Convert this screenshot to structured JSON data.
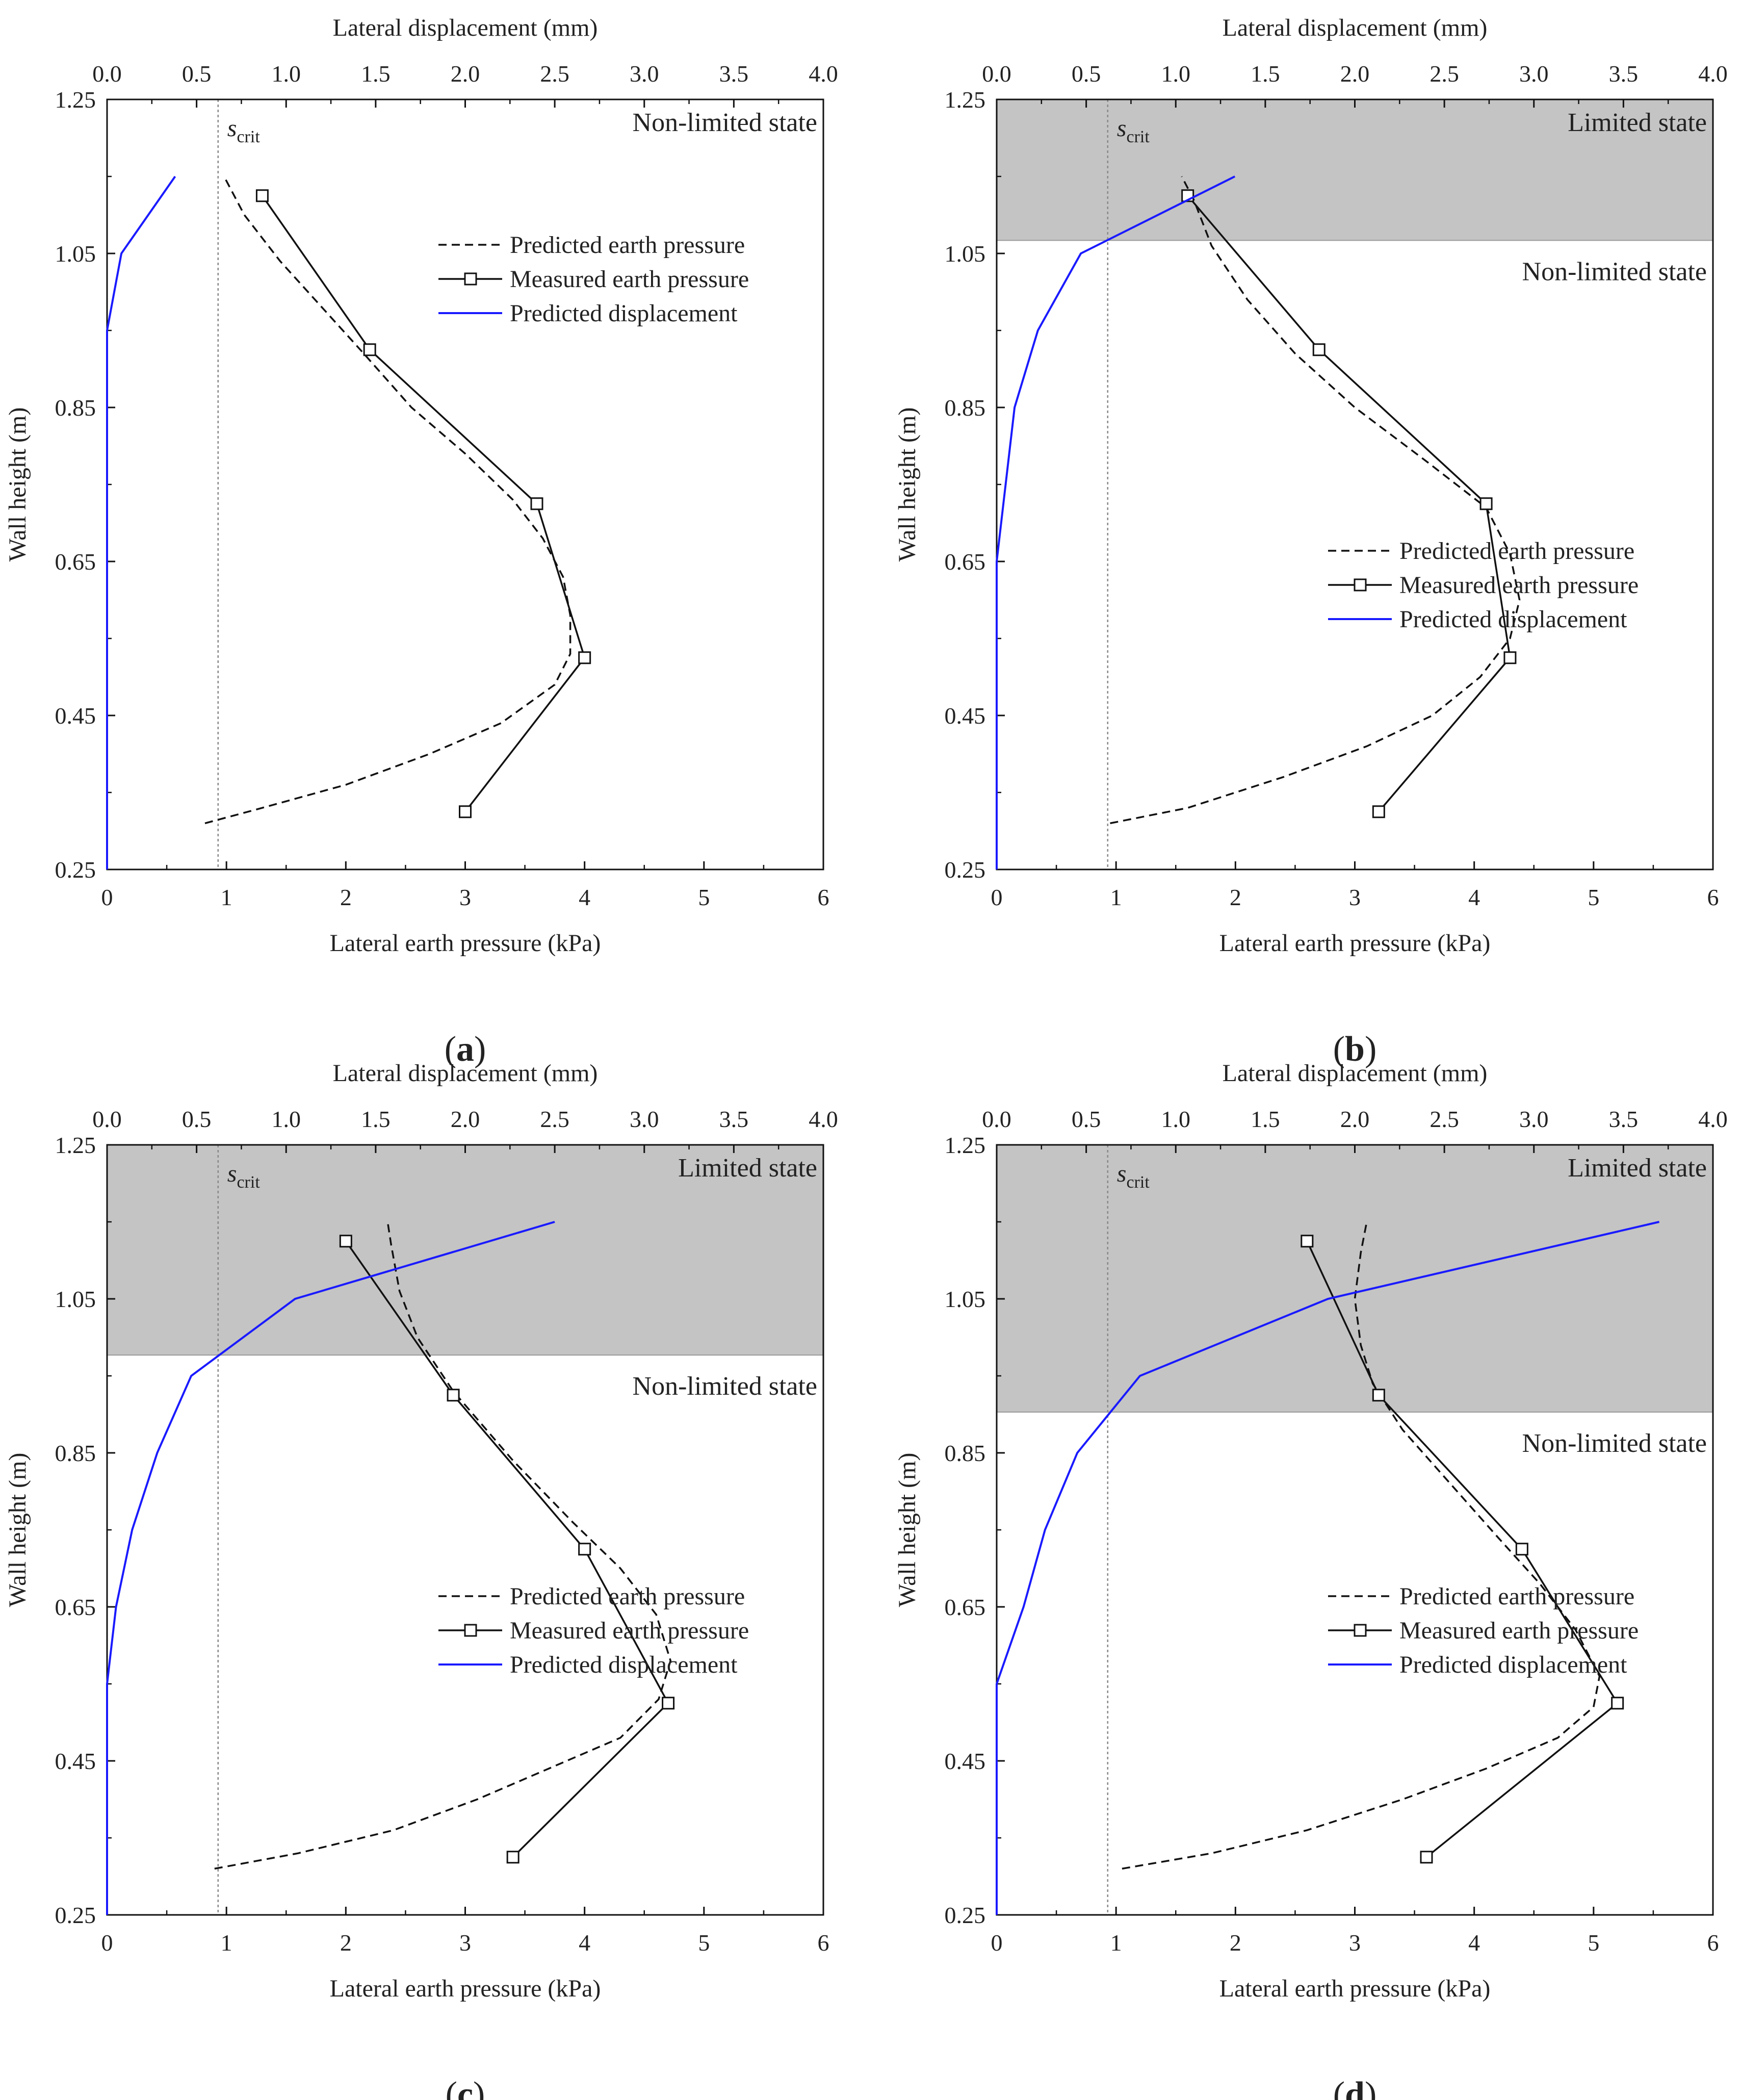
{
  "axis_titles": {
    "top": "Lateral displacement (mm)",
    "bottom": "Lateral earth pressure (kPa)",
    "left": "Wall height (m)"
  },
  "legend": {
    "predicted_pressure": "Predicted earth pressure",
    "measured_pressure": "Measured earth pressure",
    "predicted_displacement": "Predicted displacement"
  },
  "scrit": {
    "symbol": "s",
    "subscript": "crit"
  },
  "ticks": {
    "x_bottom": [
      "0",
      "1",
      "2",
      "3",
      "4",
      "5",
      "6"
    ],
    "x_top": [
      "0.0",
      "0.5",
      "1.0",
      "1.5",
      "2.0",
      "2.5",
      "3.0",
      "3.5",
      "4.0"
    ],
    "y": [
      "0.25",
      "0.45",
      "0.65",
      "0.85",
      "1.05",
      "1.25"
    ]
  },
  "colors": {
    "pressure": "#111111",
    "displacement": "#1a1aff",
    "limited_fill": "#c4c4c4",
    "scrit_line": "#888888"
  },
  "chart_data": [
    {
      "type": "line",
      "panel": "(a)",
      "caption_letter": "a",
      "xlabel": "Lateral earth pressure (kPa)",
      "x2label": "Lateral displacement (mm)",
      "ylabel": "Wall height (m)",
      "xlim": [
        0,
        6
      ],
      "x2lim": [
        0,
        4
      ],
      "ylim": [
        0.25,
        1.25
      ],
      "scrit_mm": 0.62,
      "limited_boundary": null,
      "regions": {
        "upper": null,
        "lower": "Non-limited state"
      },
      "legend_position": "top-right",
      "series": [
        {
          "name": "Predicted earth pressure",
          "style": "dashed",
          "points": [
            [
              0.82,
              0.31
            ],
            [
              1.3,
              0.33
            ],
            [
              2.0,
              0.36
            ],
            [
              2.7,
              0.4
            ],
            [
              3.3,
              0.44
            ],
            [
              3.75,
              0.49
            ],
            [
              3.88,
              0.53
            ],
            [
              3.88,
              0.58
            ],
            [
              3.82,
              0.63
            ],
            [
              3.65,
              0.68
            ],
            [
              3.4,
              0.73
            ],
            [
              3.0,
              0.79
            ],
            [
              2.55,
              0.85
            ],
            [
              2.15,
              0.92
            ],
            [
              1.8,
              0.98
            ],
            [
              1.45,
              1.04
            ],
            [
              1.15,
              1.1
            ],
            [
              0.98,
              1.15
            ]
          ]
        },
        {
          "name": "Measured earth pressure",
          "style": "solid-square",
          "points": [
            [
              3.0,
              0.325
            ],
            [
              4.0,
              0.525
            ],
            [
              3.6,
              0.725
            ],
            [
              2.2,
              0.925
            ],
            [
              1.3,
              1.125
            ]
          ]
        },
        {
          "name": "Predicted displacement",
          "axis": "top",
          "style": "solid",
          "points": [
            [
              0.0,
              0.25
            ],
            [
              0.0,
              0.95
            ],
            [
              0.08,
              1.05
            ],
            [
              0.38,
              1.15
            ]
          ]
        }
      ]
    },
    {
      "type": "line",
      "panel": "(b)",
      "caption_letter": "b",
      "xlabel": "Lateral earth pressure (kPa)",
      "x2label": "Lateral displacement (mm)",
      "ylabel": "Wall height (m)",
      "xlim": [
        0,
        6
      ],
      "x2lim": [
        0,
        4
      ],
      "ylim": [
        0.25,
        1.25
      ],
      "scrit_mm": 0.62,
      "limited_boundary": 1.067,
      "regions": {
        "upper": "Limited state",
        "lower": "Non-limited state"
      },
      "legend_position": "middle-right",
      "series": [
        {
          "name": "Predicted earth pressure",
          "style": "dashed",
          "points": [
            [
              0.95,
              0.31
            ],
            [
              1.6,
              0.33
            ],
            [
              2.4,
              0.37
            ],
            [
              3.1,
              0.41
            ],
            [
              3.65,
              0.45
            ],
            [
              4.05,
              0.5
            ],
            [
              4.3,
              0.55
            ],
            [
              4.38,
              0.6
            ],
            [
              4.3,
              0.66
            ],
            [
              4.1,
              0.72
            ],
            [
              3.6,
              0.78
            ],
            [
              3.0,
              0.85
            ],
            [
              2.5,
              0.92
            ],
            [
              2.1,
              0.99
            ],
            [
              1.8,
              1.06
            ],
            [
              1.65,
              1.12
            ],
            [
              1.55,
              1.15
            ]
          ]
        },
        {
          "name": "Measured earth pressure",
          "style": "solid-square",
          "points": [
            [
              3.2,
              0.325
            ],
            [
              4.3,
              0.525
            ],
            [
              4.1,
              0.725
            ],
            [
              2.7,
              0.925
            ],
            [
              1.6,
              1.125
            ]
          ]
        },
        {
          "name": "Predicted displacement",
          "axis": "top",
          "style": "solid",
          "points": [
            [
              0.0,
              0.25
            ],
            [
              0.0,
              0.65
            ],
            [
              0.1,
              0.85
            ],
            [
              0.23,
              0.95
            ],
            [
              0.47,
              1.05
            ],
            [
              1.33,
              1.15
            ]
          ]
        }
      ]
    },
    {
      "type": "line",
      "panel": "(c)",
      "caption_letter": "c",
      "xlabel": "Lateral earth pressure (kPa)",
      "x2label": "Lateral displacement (mm)",
      "ylabel": "Wall height (m)",
      "xlim": [
        0,
        6
      ],
      "x2lim": [
        0,
        4
      ],
      "ylim": [
        0.25,
        1.25
      ],
      "scrit_mm": 0.62,
      "limited_boundary": 0.977,
      "regions": {
        "upper": "Limited state",
        "lower": "Non-limited state"
      },
      "legend_position": "middle-right",
      "series": [
        {
          "name": "Predicted earth pressure",
          "style": "dashed",
          "points": [
            [
              0.9,
              0.31
            ],
            [
              1.6,
              0.33
            ],
            [
              2.4,
              0.36
            ],
            [
              3.1,
              0.4
            ],
            [
              3.7,
              0.44
            ],
            [
              4.3,
              0.48
            ],
            [
              4.62,
              0.53
            ],
            [
              4.72,
              0.58
            ],
            [
              4.6,
              0.64
            ],
            [
              4.3,
              0.7
            ],
            [
              3.9,
              0.76
            ],
            [
              3.4,
              0.84
            ],
            [
              2.9,
              0.93
            ],
            [
              2.6,
              1.0
            ],
            [
              2.45,
              1.06
            ],
            [
              2.38,
              1.12
            ],
            [
              2.35,
              1.15
            ]
          ]
        },
        {
          "name": "Measured earth pressure",
          "style": "solid-square",
          "points": [
            [
              3.4,
              0.325
            ],
            [
              4.7,
              0.525
            ],
            [
              4.0,
              0.725
            ],
            [
              2.9,
              0.925
            ],
            [
              2.0,
              1.125
            ]
          ]
        },
        {
          "name": "Predicted displacement",
          "axis": "top",
          "style": "solid",
          "points": [
            [
              0.0,
              0.25
            ],
            [
              0.0,
              0.55
            ],
            [
              0.05,
              0.65
            ],
            [
              0.14,
              0.75
            ],
            [
              0.28,
              0.85
            ],
            [
              0.47,
              0.95
            ],
            [
              1.05,
              1.05
            ],
            [
              2.5,
              1.15
            ]
          ]
        }
      ]
    },
    {
      "type": "line",
      "panel": "(d)",
      "caption_letter": "d",
      "xlabel": "Lateral earth pressure (kPa)",
      "x2label": "Lateral displacement (mm)",
      "ylabel": "Wall height (m)",
      "xlim": [
        0,
        6
      ],
      "x2lim": [
        0,
        4
      ],
      "ylim": [
        0.25,
        1.25
      ],
      "scrit_mm": 0.62,
      "limited_boundary": 0.903,
      "regions": {
        "upper": "Limited state",
        "lower": "Non-limited state"
      },
      "legend_position": "middle-right",
      "series": [
        {
          "name": "Predicted earth pressure",
          "style": "dashed",
          "points": [
            [
              1.05,
              0.31
            ],
            [
              1.8,
              0.33
            ],
            [
              2.6,
              0.36
            ],
            [
              3.4,
              0.4
            ],
            [
              4.1,
              0.44
            ],
            [
              4.7,
              0.48
            ],
            [
              5.0,
              0.52
            ],
            [
              5.05,
              0.56
            ],
            [
              4.85,
              0.62
            ],
            [
              4.55,
              0.68
            ],
            [
              4.2,
              0.74
            ],
            [
              3.8,
              0.81
            ],
            [
              3.4,
              0.88
            ],
            [
              3.15,
              0.94
            ],
            [
              3.05,
              0.99
            ],
            [
              3.0,
              1.05
            ],
            [
              3.05,
              1.11
            ],
            [
              3.1,
              1.15
            ]
          ]
        },
        {
          "name": "Measured earth pressure",
          "style": "solid-square",
          "points": [
            [
              3.6,
              0.325
            ],
            [
              5.2,
              0.525
            ],
            [
              4.4,
              0.725
            ],
            [
              3.2,
              0.925
            ],
            [
              2.6,
              1.125
            ]
          ]
        },
        {
          "name": "Predicted displacement",
          "axis": "top",
          "style": "solid",
          "points": [
            [
              0.0,
              0.25
            ],
            [
              0.0,
              0.55
            ],
            [
              0.15,
              0.65
            ],
            [
              0.27,
              0.75
            ],
            [
              0.45,
              0.85
            ],
            [
              0.8,
              0.95
            ],
            [
              1.85,
              1.05
            ],
            [
              3.7,
              1.15
            ]
          ]
        }
      ]
    }
  ]
}
